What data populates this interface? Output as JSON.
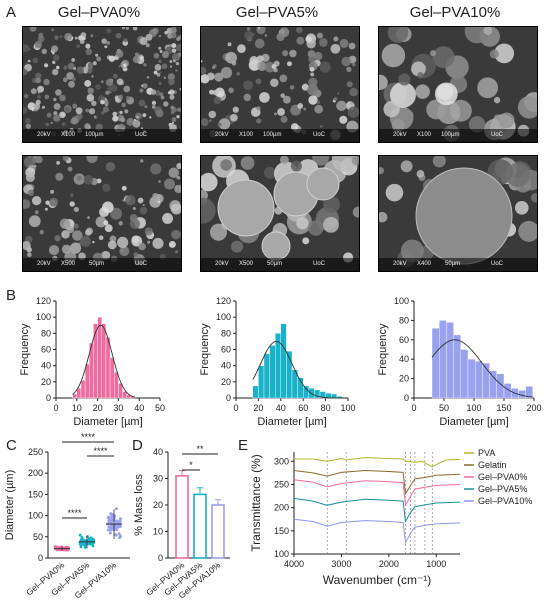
{
  "panel_a": {
    "letter": "A",
    "titles": [
      "Gel–PVA0%",
      "Gel–PVA5%",
      "Gel–PVA10%"
    ],
    "top_row": [
      {
        "kv": "20kV",
        "mag": "X100",
        "scale": "100µm",
        "inst": "UoC"
      },
      {
        "kv": "20kV",
        "mag": "X100",
        "scale": "100µm",
        "inst": "UoC"
      },
      {
        "kv": "20kV",
        "mag": "X100",
        "scale": "100µm",
        "inst": "UoC"
      }
    ],
    "bottom_row": [
      {
        "kv": "20kV",
        "mag": "X500",
        "scale": "50µm",
        "inst": "UoC"
      },
      {
        "kv": "20kV",
        "mag": "X500",
        "scale": "50µm",
        "inst": "UoC"
      },
      {
        "kv": "20kV",
        "mag": "X400",
        "scale": "50µm",
        "inst": "UoC"
      }
    ]
  },
  "chart_data": [
    {
      "id": "B1",
      "type": "bar",
      "panel": "B",
      "xlabel": "Diameter [µm]",
      "ylabel": "Frequency",
      "xlim": [
        0,
        50
      ],
      "ylim": [
        0,
        120
      ],
      "xticks": [
        0,
        10,
        20,
        30,
        40,
        50
      ],
      "yticks": [
        0,
        20,
        40,
        60,
        80,
        100,
        120
      ],
      "color": "#f06ca0",
      "bin_width": 2,
      "bin_starts": [
        8,
        10,
        12,
        14,
        16,
        18,
        20,
        22,
        24,
        26,
        28,
        30,
        32,
        34,
        36
      ],
      "values": [
        5,
        12,
        22,
        42,
        68,
        92,
        100,
        92,
        75,
        50,
        32,
        18,
        8,
        4,
        2
      ],
      "fit": {
        "type": "gaussian",
        "mean": 21.5,
        "sd": 5.5,
        "peak": 90
      }
    },
    {
      "id": "B2",
      "type": "bar",
      "panel": "B",
      "xlabel": "Diameter [µm]",
      "ylabel": "Frequency",
      "xlim": [
        0,
        100
      ],
      "ylim": [
        0,
        120
      ],
      "xticks": [
        0,
        20,
        40,
        60,
        80,
        100
      ],
      "yticks": [
        0,
        20,
        40,
        60,
        80,
        100,
        120
      ],
      "color": "#1ab2c8",
      "bin_width": 5,
      "bin_starts": [
        15,
        20,
        25,
        30,
        35,
        40,
        45,
        50,
        55,
        60,
        65,
        70,
        75,
        80,
        85,
        90
      ],
      "values": [
        15,
        40,
        55,
        65,
        80,
        92,
        58,
        35,
        25,
        15,
        12,
        10,
        8,
        6,
        5,
        2
      ],
      "fit": {
        "type": "gaussian",
        "mean": 36,
        "sd": 14,
        "peak": 70
      }
    },
    {
      "id": "B3",
      "type": "bar",
      "panel": "B",
      "xlabel": "Diameter [µm]",
      "ylabel": "Frequency",
      "xlim": [
        0,
        200
      ],
      "ylim": [
        0,
        100
      ],
      "xticks": [
        0,
        50,
        100,
        150,
        200
      ],
      "yticks": [
        0,
        20,
        40,
        60,
        80,
        100
      ],
      "color": "#9aa1ee",
      "bin_width": 12,
      "bin_starts": [
        30,
        42,
        54,
        66,
        78,
        90,
        102,
        114,
        126,
        138,
        150,
        162,
        174,
        186
      ],
      "values": [
        72,
        80,
        78,
        65,
        50,
        40,
        38,
        36,
        28,
        25,
        15,
        10,
        8,
        12
      ],
      "fit": {
        "type": "gaussian",
        "mean": 68,
        "sd": 45,
        "peak": 60
      }
    },
    {
      "id": "C",
      "type": "scatter",
      "panel": "C",
      "ylabel": "Diameter (µm)",
      "categories": [
        "Gel–PVA0%",
        "Gel–PVA5%",
        "Gel–PVA10%"
      ],
      "ylim": [
        0,
        250
      ],
      "yticks": [
        0,
        50,
        100,
        150,
        200,
        250
      ],
      "means": [
        22,
        38,
        80
      ],
      "sd": [
        5,
        15,
        35
      ],
      "ranges": [
        [
          10,
          40
        ],
        [
          12,
          80
        ],
        [
          20,
          185
        ]
      ],
      "colors": [
        "#f06ca0",
        "#1ab2c8",
        "#9aa1ee"
      ],
      "significance": [
        {
          "from": 0,
          "to": 1,
          "label": "****"
        },
        {
          "from": 0,
          "to": 2,
          "label": "****"
        },
        {
          "from": 1,
          "to": 2,
          "label": "****"
        }
      ]
    },
    {
      "id": "D",
      "type": "bar",
      "panel": "D",
      "ylabel": "% Mass loss",
      "categories": [
        "Gel–PVA0%",
        "Gel–PVA5%",
        "Gel–PVA10%"
      ],
      "values": [
        31,
        24,
        20
      ],
      "errors": [
        2,
        2.5,
        2
      ],
      "ylim": [
        0,
        40
      ],
      "yticks": [
        0,
        10,
        20,
        30,
        40
      ],
      "colors": [
        "#f06ca0",
        "#1ab2c8",
        "#9aa1ee"
      ],
      "significance": [
        {
          "from": 0,
          "to": 1,
          "label": "*"
        },
        {
          "from": 0,
          "to": 2,
          "label": "**"
        }
      ]
    },
    {
      "id": "E",
      "type": "line",
      "panel": "E",
      "xlabel": "Wavenumber (cm⁻¹)",
      "ylabel": "Transmittance (%)",
      "xlim": [
        4000,
        500
      ],
      "ylim": [
        100,
        320
      ],
      "xticks": [
        4000,
        3000,
        2000,
        1000
      ],
      "yticks": [
        100,
        150,
        200,
        250,
        300
      ],
      "reference_lines": [
        3300,
        2900,
        1650,
        1540,
        1450,
        1240,
        1085
      ],
      "series": [
        {
          "name": "PVA",
          "color": "#b3b52a",
          "x": [
            4000,
            3600,
            3300,
            3000,
            2900,
            2500,
            2000,
            1700,
            1650,
            1450,
            1300,
            1090,
            800,
            500
          ],
          "y": [
            305,
            305,
            300,
            306,
            303,
            308,
            306,
            305,
            300,
            298,
            300,
            288,
            303,
            304
          ]
        },
        {
          "name": "Gelatin",
          "color": "#8a6a2c",
          "x": [
            4000,
            3600,
            3300,
            3000,
            2500,
            2000,
            1700,
            1650,
            1540,
            1450,
            1240,
            1000,
            500
          ],
          "y": [
            280,
            275,
            268,
            276,
            280,
            278,
            276,
            230,
            248,
            262,
            265,
            270,
            272
          ]
        },
        {
          "name": "Gel–PVA0%",
          "color": "#f06ca0",
          "x": [
            4000,
            3600,
            3300,
            3000,
            2500,
            2000,
            1700,
            1650,
            1540,
            1450,
            1240,
            1000,
            500
          ],
          "y": [
            260,
            255,
            245,
            252,
            258,
            256,
            254,
            205,
            225,
            240,
            244,
            248,
            250
          ]
        },
        {
          "name": "Gel–PVA5%",
          "color": "#1a8fa0",
          "x": [
            4000,
            3600,
            3300,
            3000,
            2500,
            2000,
            1700,
            1650,
            1540,
            1450,
            1240,
            1000,
            500
          ],
          "y": [
            220,
            214,
            205,
            212,
            218,
            216,
            214,
            170,
            190,
            202,
            206,
            210,
            212
          ]
        },
        {
          "name": "Gel–PVA10%",
          "color": "#8d95ea",
          "x": [
            4000,
            3600,
            3300,
            3000,
            2500,
            2000,
            1700,
            1650,
            1540,
            1450,
            1240,
            1000,
            500
          ],
          "y": [
            175,
            170,
            160,
            168,
            172,
            170,
            168,
            125,
            145,
            158,
            162,
            165,
            167
          ]
        }
      ]
    }
  ],
  "panel_letters": {
    "b": "B",
    "c": "C",
    "d": "D",
    "e": "E"
  }
}
